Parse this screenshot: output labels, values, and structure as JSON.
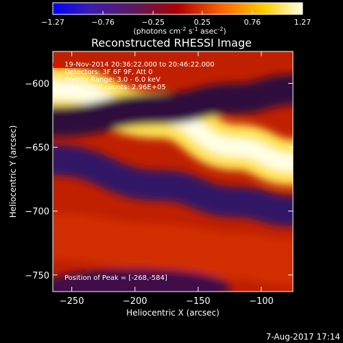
{
  "chart_data": {
    "type": "heatmap",
    "title": "Reconstructed RHESSI Image",
    "xlabel": "Heliocentric X (arcsec)",
    "ylabel": "Heliocentric Y (arcsec)",
    "xlim": [
      -265,
      -75
    ],
    "ylim": [
      -763,
      -575
    ],
    "xticks": [
      -250,
      -200,
      -150,
      -100
    ],
    "yticks": [
      -600,
      -650,
      -700,
      -750
    ],
    "colorbar": {
      "min": -1.27,
      "max": 1.27,
      "ticks": [
        "-1.27",
        "-0.76",
        "-0.25",
        "0.25",
        "0.76",
        "1.27"
      ],
      "unit_label": "(photons cm",
      "unit_exp1": "-2",
      "unit_mid": " s",
      "unit_exp2": "-1",
      "unit_mid2": " asec",
      "unit_exp3": "-2",
      "unit_end": ")"
    },
    "annotations": {
      "time": "19-Nov-2014 20:36:22.000 to 20:46:22.000",
      "detectors": "Detectors: 3F 6F 9F, Att 0",
      "energy": "Energy Range: 3.0 - 6.0 keV",
      "clean": "Clean    Total counts: 2.96E+05",
      "peak": "Position of Peak = [-268,-584]"
    },
    "bands": [
      {
        "x": [
          -265,
          -180,
          -120,
          -75
        ],
        "y": [
          -605,
          -625,
          -650,
          -662
        ],
        "width": 18,
        "value": 1.1
      },
      {
        "x": [
          -265,
          -180,
          -120,
          -75
        ],
        "y": [
          -660,
          -680,
          -693,
          -700
        ],
        "width": 12,
        "value": -0.6
      },
      {
        "x": [
          -265,
          -180,
          -120,
          -75
        ],
        "y": [
          -630,
          -620,
          -612,
          -605
        ],
        "width": 12,
        "value": -0.5
      },
      {
        "x": [
          -265,
          -180,
          -120,
          -75
        ],
        "y": [
          -720,
          -728,
          -735,
          -740
        ],
        "width": 18,
        "value": 0.4
      }
    ],
    "peak": [
      -268,
      -584
    ]
  },
  "footer": {
    "date": "7-Aug-2017 17:14"
  }
}
